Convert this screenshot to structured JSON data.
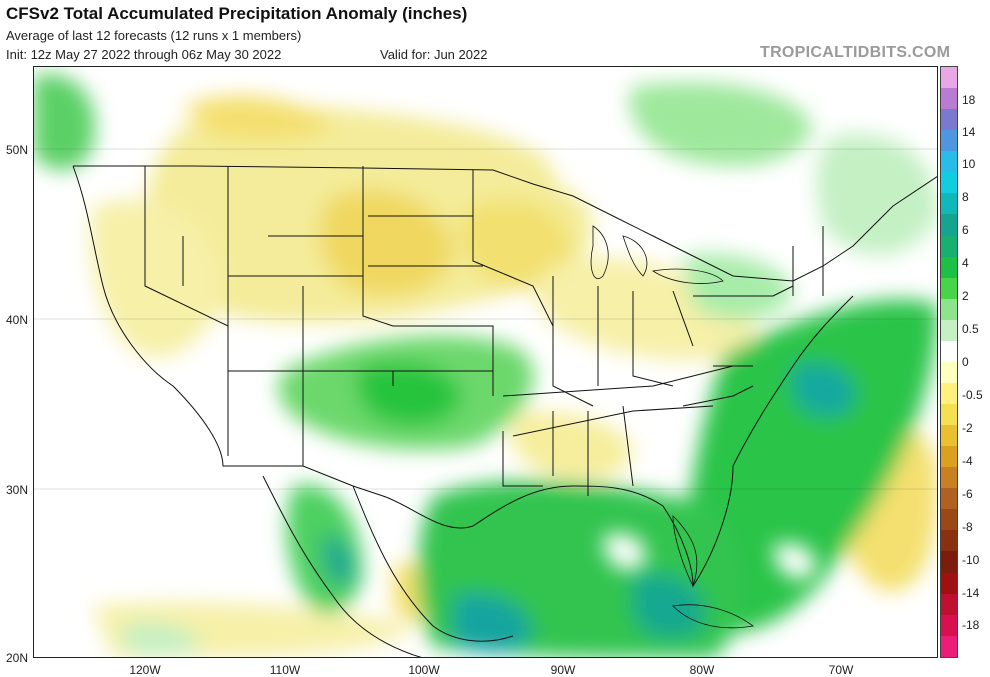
{
  "header": {
    "title": "CFSv2 Total Accumulated Precipitation Anomaly (inches)",
    "subtitle": "Average of last 12 forecasts (12 runs x 1 members)",
    "init": "Init: 12z May 27 2022 through 06z May 30 2022",
    "valid": "Valid for: Jun 2022",
    "brand": "TROPICALTIDBITS.COM"
  },
  "axes": {
    "lat_labels": [
      "50N",
      "40N",
      "30N",
      "20N"
    ],
    "lon_labels": [
      "120W",
      "110W",
      "100W",
      "90W",
      "80W",
      "70W"
    ]
  },
  "colorbar": {
    "labels": [
      "18",
      "14",
      "10",
      "6",
      "2",
      "0",
      "-2",
      "-6",
      "-10",
      "-14",
      "-18"
    ],
    "labels_minor": [
      "8",
      "4",
      "0.5",
      "-0.5",
      "-4",
      "-8"
    ],
    "colors": [
      "#e8a8e8",
      "#b87cd0",
      "#7a78d0",
      "#4e96e0",
      "#28bce8",
      "#14cce0",
      "#10b8b8",
      "#14a490",
      "#18b070",
      "#1cc044",
      "#48d448",
      "#8ee48c",
      "#c4f0c4",
      "#ffffff",
      "#ffffc0",
      "#fff080",
      "#f4e050",
      "#e8c030",
      "#dca020",
      "#c88020",
      "#b06020",
      "#9a4818",
      "#883010",
      "#7c1c0c",
      "#a01010",
      "#c01030",
      "#d81050",
      "#ec1c78"
    ]
  }
}
